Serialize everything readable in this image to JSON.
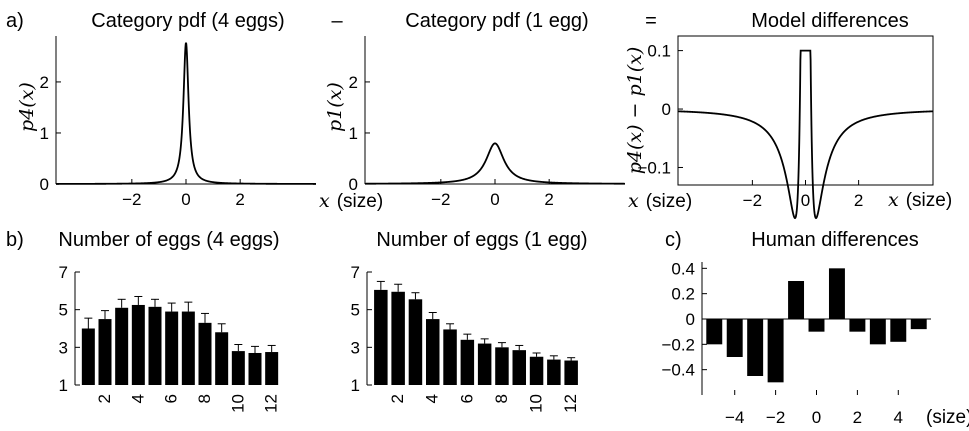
{
  "panel_labels": {
    "a": "a)",
    "b": "b)",
    "c": "c)"
  },
  "operators": {
    "minus": "–",
    "equals": "="
  },
  "chart_data": [
    {
      "id": "pdf4",
      "type": "line",
      "title": "Category pdf (4 eggs)",
      "xlabel_math": "x",
      "xlabel_unit": "(size)",
      "ylabel": "p4(x)",
      "xlim": [
        -4.8,
        4.8
      ],
      "ylim": [
        0,
        2.9
      ],
      "xticks": [
        -2,
        0,
        2
      ],
      "xtick_labels": [
        "−2",
        "0",
        "2"
      ],
      "yticks": [
        0,
        1,
        2
      ],
      "ytick_labels": [
        "0",
        "1",
        "2"
      ],
      "distribution": "cauchy",
      "scale": 0.115
    },
    {
      "id": "pdf1",
      "type": "line",
      "title": "Category pdf (1 egg)",
      "xlabel_math": "x",
      "xlabel_unit": "(size)",
      "ylabel": "p1(x)",
      "xlim": [
        -4.8,
        4.8
      ],
      "ylim": [
        0,
        2.9
      ],
      "xticks": [
        -2,
        0,
        2
      ],
      "xtick_labels": [
        "−2",
        "0",
        "2"
      ],
      "yticks": [
        0,
        1,
        2
      ],
      "ytick_labels": [
        "0",
        "1",
        "2"
      ],
      "distribution": "cauchy",
      "scale": 0.4
    },
    {
      "id": "model",
      "type": "line",
      "title": "Model differences",
      "xlabel_math": "x",
      "xlabel_unit": "(size)",
      "ylabel": "p4(x) − p1(x)",
      "xlim": [
        -4.8,
        4.8
      ],
      "ylim": [
        -0.13,
        0.125
      ],
      "clip_top": 0.1,
      "xticks": [
        -2,
        0,
        2
      ],
      "xtick_labels": [
        "−2",
        "0",
        "2"
      ],
      "yticks": [
        -0.1,
        0,
        0.1
      ],
      "ytick_labels": [
        "−0.1",
        "0",
        "0.1"
      ]
    },
    {
      "id": "eggs4",
      "type": "bar",
      "title": "Number of eggs (4 eggs)",
      "x": [
        1,
        2,
        3,
        4,
        5,
        6,
        7,
        8,
        9,
        10,
        11,
        12
      ],
      "values": [
        4.0,
        4.5,
        5.1,
        5.25,
        5.15,
        4.9,
        4.9,
        4.3,
        3.8,
        2.8,
        2.7,
        2.75
      ],
      "errors": [
        0.55,
        0.45,
        0.45,
        0.45,
        0.4,
        0.45,
        0.5,
        0.5,
        0.45,
        0.35,
        0.35,
        0.35
      ],
      "xlim": [
        0.2,
        12.8
      ],
      "ylim": [
        1,
        7
      ],
      "xticks": [
        2,
        4,
        6,
        8,
        10,
        12
      ],
      "xtick_labels": [
        "2",
        "4",
        "6",
        "8",
        "10",
        "12"
      ],
      "yticks": [
        1,
        3,
        5,
        7
      ],
      "ytick_labels": [
        "1",
        "3",
        "5",
        "7"
      ]
    },
    {
      "id": "eggs1",
      "type": "bar",
      "title": "Number of eggs (1 egg)",
      "x": [
        1,
        2,
        3,
        4,
        5,
        6,
        7,
        8,
        9,
        10,
        11,
        12
      ],
      "values": [
        6.05,
        5.95,
        5.55,
        4.5,
        3.95,
        3.4,
        3.2,
        3.0,
        2.85,
        2.5,
        2.35,
        2.3
      ],
      "errors": [
        0.45,
        0.4,
        0.35,
        0.35,
        0.3,
        0.3,
        0.25,
        0.25,
        0.25,
        0.2,
        0.2,
        0.15
      ],
      "xlim": [
        0.2,
        12.8
      ],
      "ylim": [
        1,
        7
      ],
      "xticks": [
        2,
        4,
        6,
        8,
        10,
        12
      ],
      "xtick_labels": [
        "2",
        "4",
        "6",
        "8",
        "10",
        "12"
      ],
      "yticks": [
        1,
        3,
        5,
        7
      ],
      "ytick_labels": [
        "1",
        "3",
        "5",
        "7"
      ]
    },
    {
      "id": "human",
      "type": "bar",
      "title": "Human differences",
      "xlabel_unit": "(size)",
      "x": [
        -5,
        -4,
        -3,
        -2,
        -1,
        0,
        1,
        2,
        3,
        4,
        5
      ],
      "values": [
        -0.2,
        -0.3,
        -0.45,
        -0.5,
        0.3,
        -0.1,
        0.4,
        -0.1,
        -0.2,
        -0.18,
        -0.08
      ],
      "xlim": [
        -5.6,
        5.6
      ],
      "ylim": [
        -0.6,
        0.45
      ],
      "xticks": [
        -4,
        -2,
        0,
        2,
        4
      ],
      "xtick_labels": [
        "−4",
        "−2",
        "0",
        "2",
        "4"
      ],
      "yticks": [
        -0.4,
        -0.2,
        0,
        0.2,
        0.4
      ],
      "ytick_labels": [
        "−0.4",
        "−0.2",
        "0",
        "0.2",
        "0.4"
      ]
    }
  ]
}
